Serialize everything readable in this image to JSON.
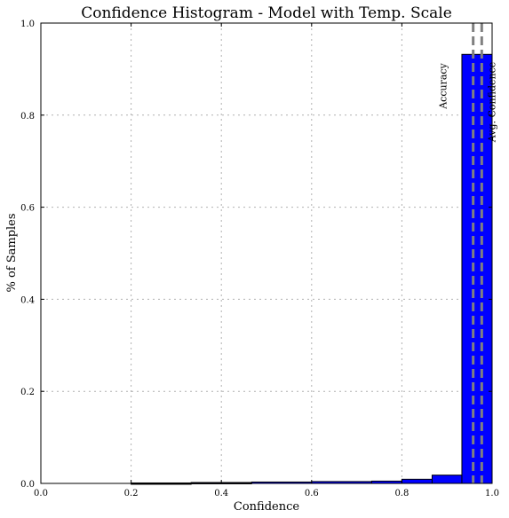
{
  "chart_data": {
    "type": "bar",
    "title": "Confidence Histogram - Model with Temp. Scale",
    "xlabel": "Confidence",
    "ylabel": "% of Samples",
    "xlim": [
      0.0,
      1.0
    ],
    "ylim": [
      0.0,
      1.0
    ],
    "xticks": [
      "0.0",
      "0.2",
      "0.4",
      "0.6",
      "0.8",
      "1.0"
    ],
    "yticks": [
      "0.0",
      "0.2",
      "0.4",
      "0.6",
      "0.8",
      "1.0"
    ],
    "grid": true,
    "bin_edges": [
      0.2,
      0.333,
      0.467,
      0.6,
      0.733,
      0.8,
      0.867,
      0.933,
      1.0
    ],
    "values": [
      0.001,
      0.002,
      0.003,
      0.004,
      0.005,
      0.009,
      0.018,
      0.932
    ],
    "bar_color": "#0000ff",
    "edge_color": "#000000",
    "reference_lines": [
      {
        "label": "Accuracy",
        "x": 0.958,
        "color": "#808080"
      },
      {
        "label": "Avg. Confidence",
        "x": 0.977,
        "color": "#808080"
      }
    ]
  }
}
